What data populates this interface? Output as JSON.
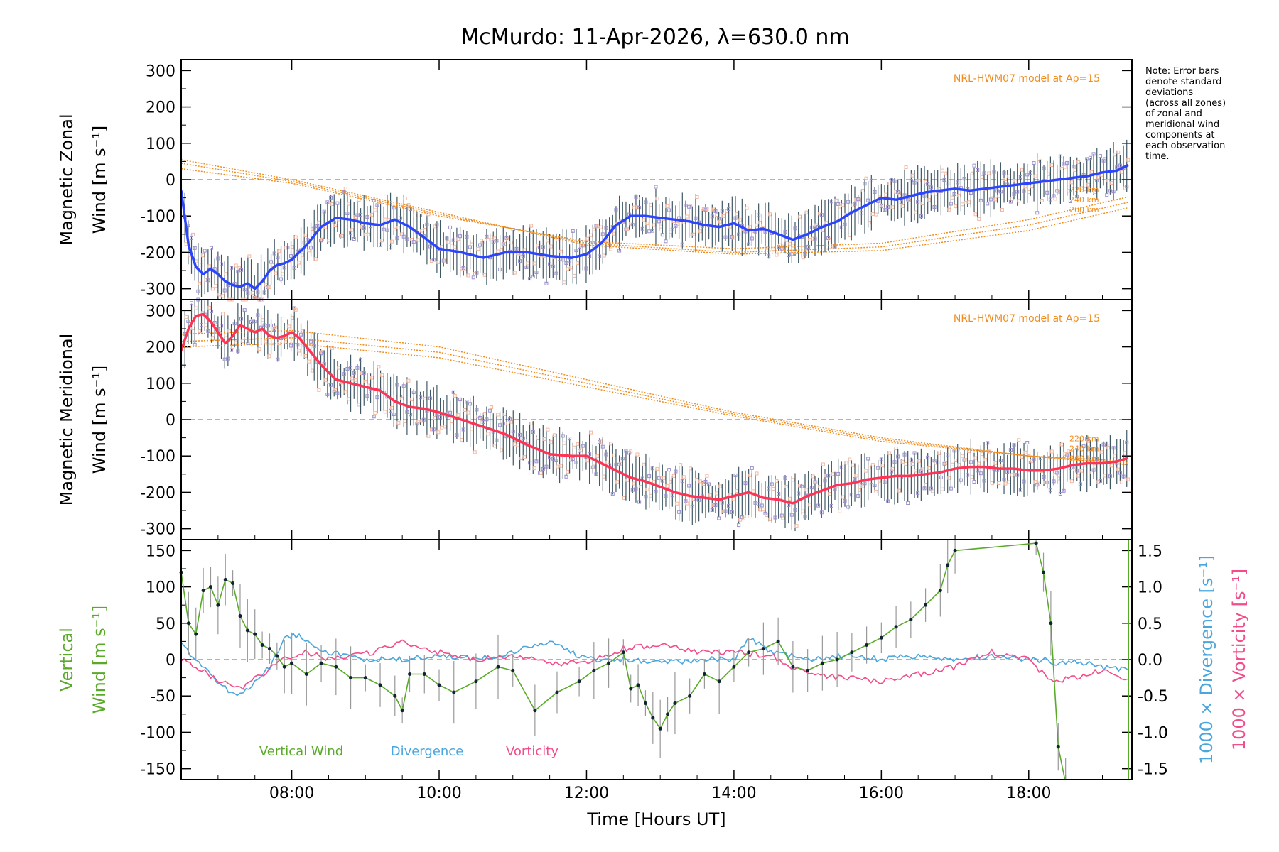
{
  "title": "McMurdo: 11-Apr-2026, λ=630.0 nm",
  "note": [
    "Note: Error bars",
    "denote standard",
    "deviations",
    "(across all zones)",
    "of zonal and",
    "meridional wind",
    "components at",
    "each observation",
    "time."
  ],
  "colors": {
    "zonal": "#2a44ff",
    "meridional": "#ff3355",
    "vertical": "#5aaa2a",
    "divergence": "#4aa6dd",
    "vorticity": "#f24d8a",
    "model": "#f08c1e",
    "errorbar": "#1d3a4a",
    "zone_marks": "#9a8fcf"
  },
  "chart_data": [
    {
      "type": "line",
      "panel": "zonal",
      "ylabel_line1": "Magnetic Zonal",
      "ylabel_line2": "Wind [m s⁻¹]",
      "ylim": [
        -330,
        330
      ],
      "yticks": [
        300,
        200,
        100,
        0,
        -100,
        -200,
        -300
      ],
      "model_label": "NRL-HWM07 model at Ap=15",
      "model_altitudes": [
        "220 km",
        "240 km",
        "260 km"
      ],
      "series": [
        {
          "name": "Zonal wind",
          "x": [
            6.5,
            6.6,
            6.7,
            6.8,
            6.9,
            7.0,
            7.1,
            7.2,
            7.3,
            7.4,
            7.5,
            7.6,
            7.7,
            7.8,
            7.9,
            8.0,
            8.2,
            8.4,
            8.6,
            8.8,
            9.0,
            9.2,
            9.4,
            9.6,
            9.8,
            10.0,
            10.3,
            10.6,
            10.9,
            11.2,
            11.5,
            11.8,
            12.0,
            12.2,
            12.4,
            12.6,
            12.8,
            13.0,
            13.2,
            13.4,
            13.6,
            13.8,
            14.0,
            14.2,
            14.4,
            14.6,
            14.8,
            15.0,
            15.2,
            15.4,
            15.6,
            15.8,
            16.0,
            16.2,
            16.4,
            16.6,
            16.8,
            17.0,
            17.2,
            17.4,
            17.6,
            17.8,
            18.0,
            18.2,
            18.4,
            18.6,
            18.8,
            19.0,
            19.2,
            19.35
          ],
          "y": [
            -30,
            -180,
            -240,
            -260,
            -245,
            -260,
            -280,
            -290,
            -295,
            -285,
            -300,
            -280,
            -250,
            -235,
            -230,
            -220,
            -180,
            -130,
            -105,
            -110,
            -120,
            -125,
            -110,
            -130,
            -160,
            -190,
            -200,
            -215,
            -200,
            -200,
            -210,
            -215,
            -205,
            -175,
            -125,
            -100,
            -100,
            -105,
            -110,
            -115,
            -125,
            -130,
            -120,
            -140,
            -135,
            -150,
            -165,
            -150,
            -130,
            -115,
            -90,
            -70,
            -50,
            -55,
            -45,
            -35,
            -30,
            -25,
            -30,
            -25,
            -20,
            -15,
            -10,
            -5,
            0,
            5,
            10,
            20,
            25,
            40
          ]
        },
        {
          "name": "Model 220 km",
          "x": [
            6.5,
            8,
            10,
            12,
            14,
            16,
            18,
            19.4
          ],
          "y": [
            30,
            -10,
            -100,
            -170,
            -190,
            -175,
            -110,
            -45
          ]
        },
        {
          "name": "Model 240 km",
          "x": [
            6.5,
            8,
            10,
            12,
            14,
            16,
            18,
            19.4
          ],
          "y": [
            45,
            -5,
            -95,
            -175,
            -200,
            -185,
            -125,
            -60
          ]
        },
        {
          "name": "Model 260 km",
          "x": [
            6.5,
            8,
            10,
            12,
            14,
            16,
            18,
            19.4
          ],
          "y": [
            55,
            0,
            -90,
            -180,
            -205,
            -195,
            -140,
            -75
          ]
        }
      ]
    },
    {
      "type": "line",
      "panel": "meridional",
      "ylabel_line1": "Magnetic Meridional",
      "ylabel_line2": "Wind [m s⁻¹]",
      "ylim": [
        -330,
        330
      ],
      "yticks": [
        300,
        200,
        100,
        0,
        -100,
        -200,
        -300
      ],
      "model_label": "NRL-HWM07 model at Ap=15",
      "model_altitudes": [
        "220 km",
        "240 km",
        "260 km"
      ],
      "series": [
        {
          "name": "Meridional wind",
          "x": [
            6.5,
            6.6,
            6.7,
            6.8,
            6.9,
            7.0,
            7.1,
            7.2,
            7.3,
            7.4,
            7.5,
            7.6,
            7.7,
            7.8,
            7.9,
            8.0,
            8.1,
            8.2,
            8.4,
            8.6,
            8.8,
            9.0,
            9.2,
            9.4,
            9.6,
            9.8,
            10.0,
            10.3,
            10.6,
            10.9,
            11.2,
            11.5,
            11.8,
            12.0,
            12.2,
            12.4,
            12.6,
            12.8,
            13.0,
            13.2,
            13.4,
            13.6,
            13.8,
            14.0,
            14.2,
            14.4,
            14.6,
            14.8,
            15.0,
            15.2,
            15.4,
            15.6,
            15.8,
            16.0,
            16.2,
            16.4,
            16.6,
            16.8,
            17.0,
            17.2,
            17.4,
            17.6,
            17.8,
            18.0,
            18.2,
            18.4,
            18.6,
            18.8,
            19.0,
            19.2,
            19.35
          ],
          "y": [
            190,
            250,
            285,
            290,
            270,
            240,
            210,
            230,
            260,
            250,
            240,
            250,
            230,
            225,
            230,
            240,
            225,
            200,
            150,
            110,
            100,
            90,
            80,
            50,
            35,
            30,
            20,
            0,
            -20,
            -40,
            -70,
            -95,
            -100,
            -100,
            -120,
            -140,
            -160,
            -170,
            -185,
            -200,
            -210,
            -215,
            -220,
            -210,
            -200,
            -215,
            -220,
            -230,
            -210,
            -195,
            -180,
            -175,
            -165,
            -160,
            -155,
            -155,
            -150,
            -145,
            -135,
            -130,
            -130,
            -135,
            -135,
            -140,
            -140,
            -135,
            -125,
            -120,
            -120,
            -115,
            -105
          ]
        },
        {
          "name": "Model 220 km",
          "x": [
            6.5,
            8,
            10,
            12,
            14,
            16,
            18,
            19.4
          ],
          "y": [
            200,
            210,
            170,
            90,
            10,
            -60,
            -100,
            -115
          ]
        },
        {
          "name": "Model 240 km",
          "x": [
            6.5,
            8,
            10,
            12,
            14,
            16,
            18,
            19.4
          ],
          "y": [
            215,
            225,
            185,
            100,
            15,
            -55,
            -100,
            -120
          ]
        },
        {
          "name": "Model 260 km",
          "x": [
            6.5,
            8,
            10,
            12,
            14,
            16,
            18,
            19.4
          ],
          "y": [
            235,
            245,
            200,
            110,
            20,
            -50,
            -100,
            -125
          ]
        }
      ]
    },
    {
      "type": "line",
      "panel": "vertical",
      "ylabel_line1": "Vertical",
      "ylabel_line2": "Wind [m s⁻¹]",
      "ylim": [
        -165,
        165
      ],
      "yticks": [
        150,
        100,
        50,
        0,
        -50,
        -100,
        -150
      ],
      "y2lim": [
        -1.65,
        1.65
      ],
      "y2ticks": [
        1.5,
        1.0,
        0.5,
        0.0,
        -0.5,
        -1.0,
        -1.5
      ],
      "y2label_div": "1000 × Divergence [s⁻¹]",
      "y2label_vort": "1000 × Vorticity [s⁻¹]",
      "legend": [
        "Vertical Wind",
        "Divergence",
        "Vorticity"
      ],
      "series": [
        {
          "name": "Vertical Wind",
          "x": [
            6.5,
            6.6,
            6.7,
            6.8,
            6.9,
            7.0,
            7.1,
            7.2,
            7.3,
            7.4,
            7.5,
            7.6,
            7.7,
            7.8,
            7.9,
            8.0,
            8.2,
            8.4,
            8.6,
            8.8,
            9.0,
            9.2,
            9.4,
            9.5,
            9.6,
            9.8,
            10.0,
            10.2,
            10.5,
            10.8,
            11.0,
            11.3,
            11.6,
            11.9,
            12.1,
            12.3,
            12.5,
            12.6,
            12.7,
            12.8,
            12.9,
            13.0,
            13.1,
            13.2,
            13.4,
            13.6,
            13.8,
            14.0,
            14.2,
            14.4,
            14.6,
            14.8,
            15.0,
            15.2,
            15.4,
            15.6,
            15.8,
            16.0,
            16.2,
            16.4,
            16.6,
            16.8,
            16.9,
            17.0,
            18.1,
            18.2,
            18.3,
            18.4,
            18.5
          ],
          "y": [
            120,
            50,
            35,
            95,
            100,
            75,
            110,
            105,
            60,
            40,
            35,
            20,
            15,
            5,
            -10,
            -5,
            -20,
            -5,
            -10,
            -25,
            -25,
            -35,
            -50,
            -70,
            -20,
            -20,
            -35,
            -45,
            -30,
            -10,
            -15,
            -70,
            -45,
            -30,
            -15,
            -5,
            10,
            -40,
            -35,
            -60,
            -80,
            -95,
            -75,
            -60,
            -50,
            -20,
            -30,
            -10,
            10,
            15,
            25,
            -10,
            -15,
            -5,
            0,
            10,
            20,
            30,
            45,
            55,
            75,
            95,
            130,
            150,
            160,
            120,
            50,
            -120,
            -170
          ]
        },
        {
          "name": "Divergence",
          "x": [
            6.5,
            6.7,
            6.9,
            7.1,
            7.3,
            7.5,
            7.7,
            7.9,
            8.1,
            8.3,
            8.5,
            9.0,
            9.5,
            10.0,
            10.5,
            11.0,
            11.5,
            12.0,
            12.5,
            13.0,
            13.5,
            14.0,
            14.2,
            14.5,
            15.0,
            15.5,
            16.0,
            16.5,
            17.0,
            17.5,
            18.0,
            18.2,
            18.4,
            18.6,
            18.8,
            19.0,
            19.35
          ],
          "y": [
            0.2,
            0.0,
            -0.2,
            -0.4,
            -0.5,
            -0.3,
            -0.1,
            0.3,
            0.35,
            0.2,
            0.1,
            0.0,
            0.0,
            0.05,
            0.0,
            0.1,
            0.25,
            0.0,
            0.0,
            -0.05,
            0.0,
            0.0,
            0.3,
            0.1,
            0.0,
            0.05,
            0.0,
            0.05,
            0.0,
            0.05,
            0.0,
            0.0,
            -0.05,
            0.0,
            -0.05,
            -0.1,
            -0.15
          ]
        },
        {
          "name": "Vorticity",
          "x": [
            6.5,
            6.8,
            7.0,
            7.3,
            7.6,
            7.9,
            8.2,
            8.5,
            8.8,
            9.1,
            9.5,
            10.0,
            10.5,
            11.0,
            11.5,
            12.0,
            12.5,
            13.0,
            13.5,
            14.0,
            14.5,
            15.0,
            15.5,
            16.0,
            16.5,
            17.0,
            17.5,
            18.0,
            18.3,
            18.6,
            19.0,
            19.35
          ],
          "y": [
            0.0,
            -0.15,
            -0.3,
            -0.4,
            -0.2,
            0.0,
            0.1,
            0.0,
            0.05,
            0.1,
            0.25,
            0.1,
            0.0,
            0.05,
            -0.05,
            -0.05,
            0.15,
            0.2,
            0.1,
            0.1,
            0.05,
            -0.2,
            -0.25,
            -0.3,
            -0.2,
            -0.1,
            0.1,
            0.0,
            -0.3,
            -0.25,
            -0.15,
            -0.3
          ]
        }
      ]
    }
  ],
  "xaxis": {
    "xlim": [
      6.5,
      19.4
    ],
    "ticks": [
      8,
      10,
      12,
      14,
      16,
      18
    ],
    "tick_labels": [
      "08:00",
      "10:00",
      "12:00",
      "14:00",
      "16:00",
      "18:00"
    ],
    "label": "Time [Hours UT]"
  }
}
